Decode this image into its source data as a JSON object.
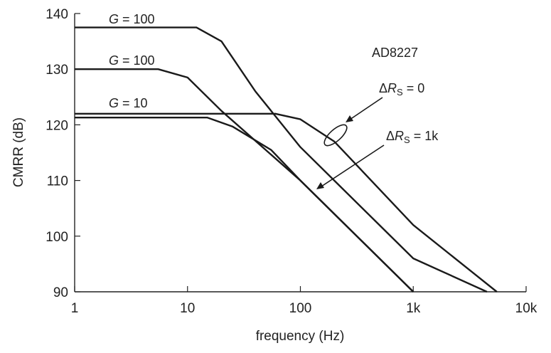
{
  "chart_data": {
    "type": "line",
    "xlabel": "frequency (Hz)",
    "ylabel": "CMRR (dB)",
    "xscale": "log",
    "xlim": [
      1,
      10000
    ],
    "ylim": [
      90,
      140
    ],
    "xticks": [
      {
        "value": 1,
        "label": "1"
      },
      {
        "value": 10,
        "label": "10"
      },
      {
        "value": 100,
        "label": "100"
      },
      {
        "value": 1000,
        "label": "1k"
      },
      {
        "value": 10000,
        "label": "10k"
      }
    ],
    "yticks": [
      {
        "value": 90,
        "label": "90"
      },
      {
        "value": 100,
        "label": "100"
      },
      {
        "value": 110,
        "label": "110"
      },
      {
        "value": 120,
        "label": "120"
      },
      {
        "value": 130,
        "label": "130"
      },
      {
        "value": 140,
        "label": "140"
      }
    ],
    "grid": false,
    "series": [
      {
        "points": [
          [
            1,
            137.5
          ],
          [
            12,
            137.5
          ],
          [
            20,
            135
          ],
          [
            40,
            126
          ],
          [
            100,
            116
          ],
          [
            1000,
            96
          ],
          [
            4500,
            90
          ]
        ]
      },
      {
        "points": [
          [
            1,
            130
          ],
          [
            5.5,
            130
          ],
          [
            10,
            128.5
          ],
          [
            20,
            122.5
          ],
          [
            100,
            110
          ],
          [
            1000,
            90
          ]
        ]
      },
      {
        "points": [
          [
            1,
            122
          ],
          [
            60,
            122
          ],
          [
            100,
            121
          ],
          [
            200,
            117
          ],
          [
            1000,
            102
          ],
          [
            5500,
            90
          ]
        ]
      },
      {
        "points": [
          [
            1,
            121.3
          ],
          [
            15,
            121.3
          ],
          [
            25,
            119.7
          ],
          [
            55,
            115.5
          ],
          [
            100,
            110
          ],
          [
            1000,
            90
          ]
        ]
      }
    ],
    "annotations": {
      "product": "AD8227",
      "g100_top": {
        "prefix": "G",
        "rest": " = 100"
      },
      "g100_mid": {
        "prefix": "G",
        "rest": " = 100"
      },
      "g10": {
        "prefix": "G",
        "rest": " = 10"
      },
      "delta_rs_0": {
        "delta": "Δ",
        "r": "R",
        "sub": "S",
        "rest": " = 0"
      },
      "delta_rs_1k": {
        "delta": "Δ",
        "r": "R",
        "sub": "S",
        "rest": " = 1k"
      }
    }
  }
}
